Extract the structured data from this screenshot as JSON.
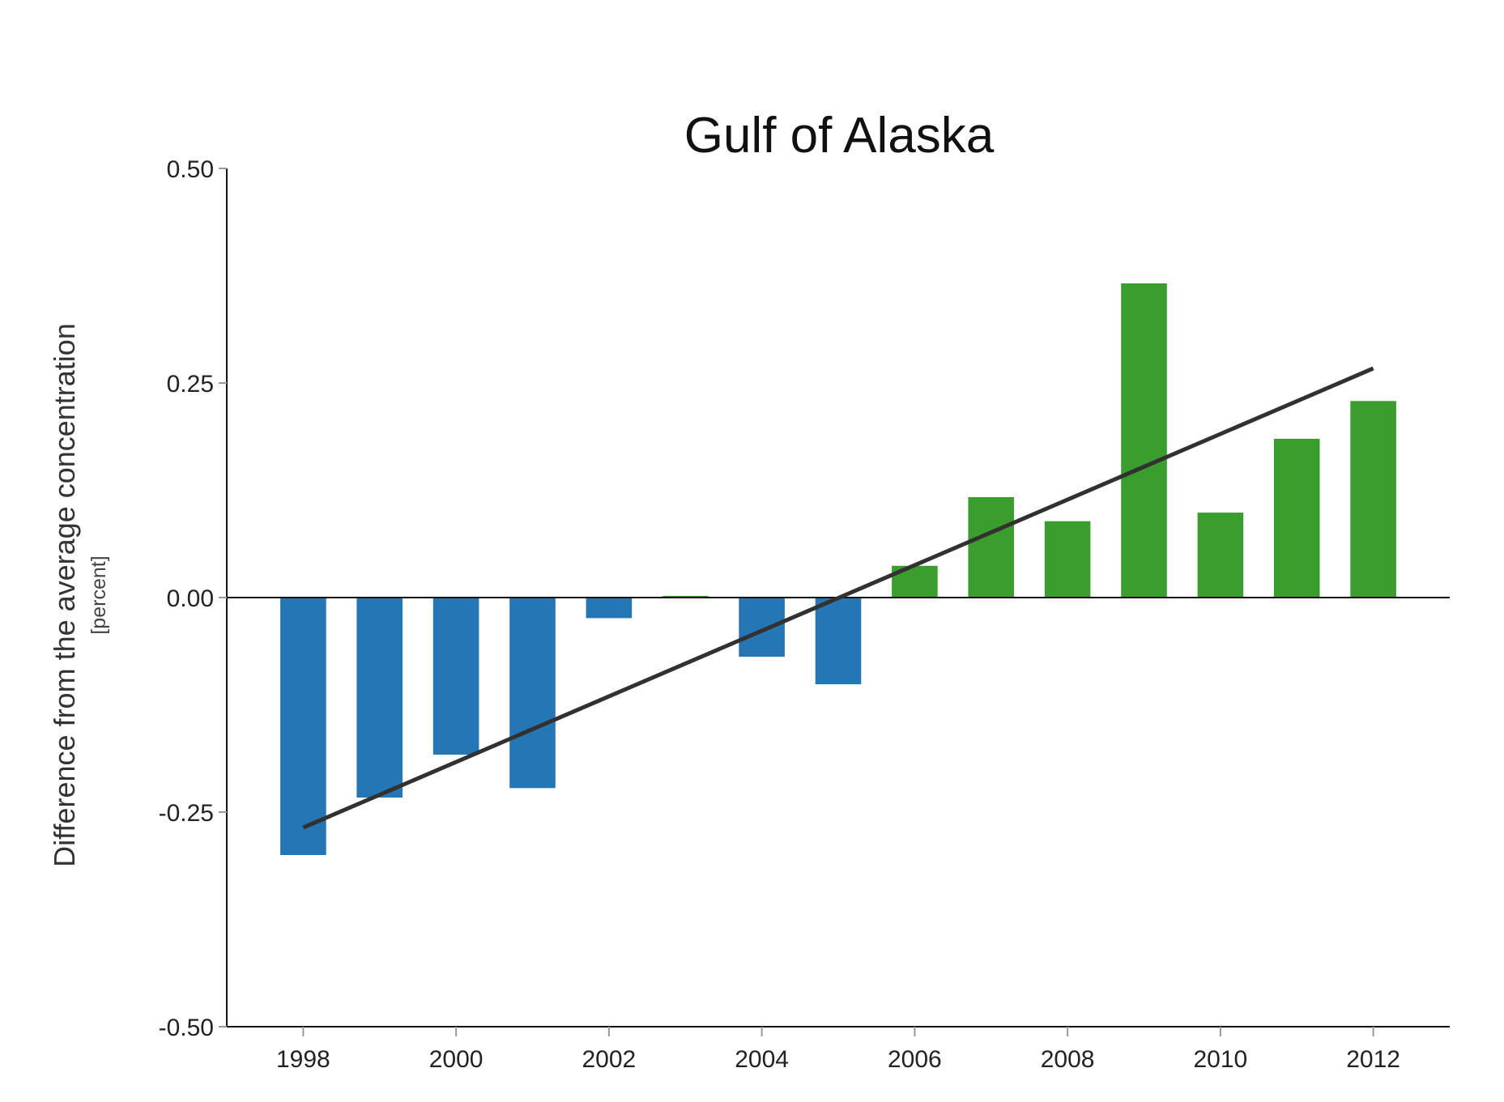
{
  "chart_data": {
    "type": "bar",
    "title": "Gulf of Alaska",
    "ylabel": "Difference from the average concentration",
    "yunit": "[percent]",
    "xlabel": "",
    "ylim": [
      -0.5,
      0.5
    ],
    "yticks": [
      "0.50",
      "0.25",
      "0.00",
      "-0.25",
      "-0.50"
    ],
    "ytick_values": [
      0.5,
      0.25,
      0.0,
      -0.25,
      -0.5
    ],
    "xticks": [
      "1998",
      "2000",
      "2002",
      "2004",
      "2006",
      "2008",
      "2010",
      "2012"
    ],
    "xtick_values": [
      1998,
      2000,
      2002,
      2004,
      2006,
      2008,
      2010,
      2012
    ],
    "xlim": [
      1997,
      2013
    ],
    "grid": false,
    "legend": "none",
    "negative_color": "#2476b5",
    "positive_color": "#3a9e2e",
    "trend_color": "#333030",
    "categories": [
      1998,
      1999,
      2000,
      2001,
      2002,
      2003,
      2004,
      2005,
      2006,
      2007,
      2008,
      2009,
      2010,
      2011,
      2012
    ],
    "values": [
      -0.3,
      -0.233,
      -0.183,
      -0.222,
      -0.024,
      0.002,
      -0.069,
      -0.101,
      0.037,
      0.117,
      0.089,
      0.366,
      0.099,
      0.185,
      0.229
    ],
    "trendline": {
      "x": [
        1998,
        2012
      ],
      "y": [
        -0.268,
        0.267
      ]
    }
  }
}
